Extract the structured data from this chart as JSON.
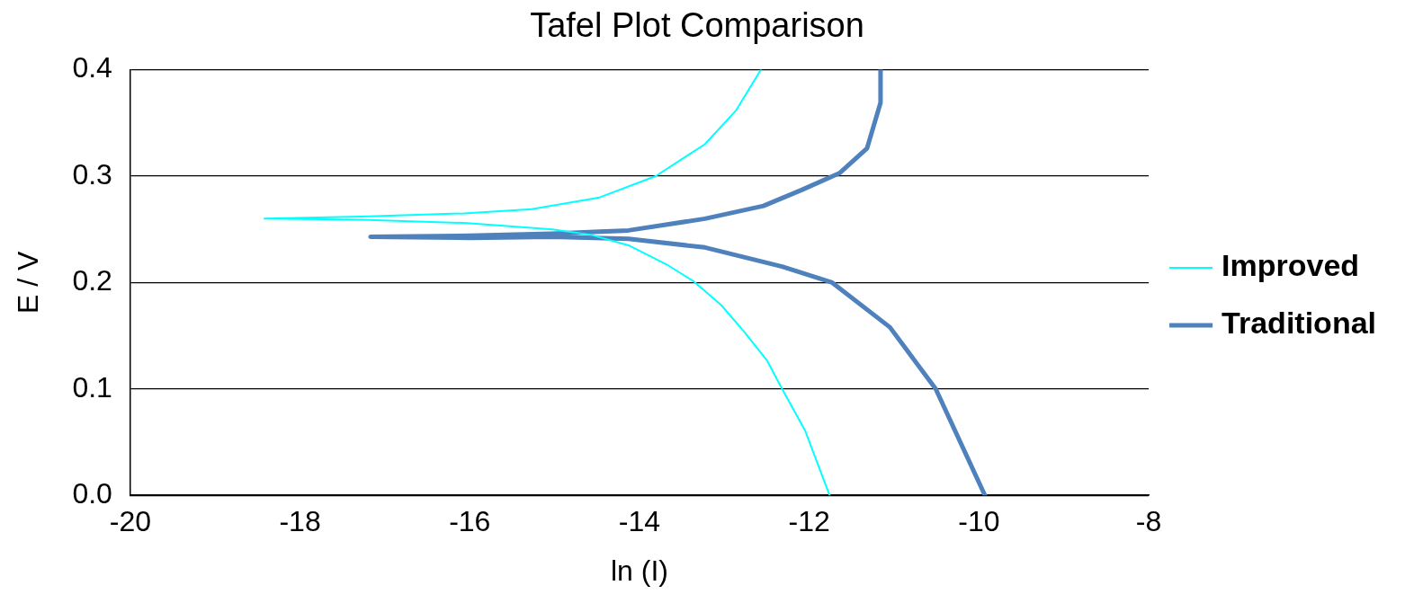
{
  "chart_data": {
    "type": "line",
    "title": "Tafel Plot Comparison",
    "xlabel": "ln (I)",
    "ylabel": "E / V",
    "xlim": [
      -20,
      -8
    ],
    "xticks": [
      -20,
      -18,
      -16,
      -14,
      -12,
      -10,
      -8
    ],
    "ylim": [
      0,
      0.4
    ],
    "yticks": [
      {
        "value": 0,
        "label": "0.0"
      },
      0.1,
      0.2,
      0.3,
      0.4
    ],
    "grid": "y",
    "legend": "right",
    "marker": "none",
    "line_style": "solid",
    "series": [
      {
        "name": "Improved",
        "color": "#00ffff",
        "x": [
          -11.76,
          -12.05,
          -12.32,
          -12.5,
          -12.77,
          -13.04,
          -13.36,
          -13.68,
          -14.13,
          -14.58,
          -15.03,
          -16.07,
          -17.27,
          -18.42,
          -17.27,
          -16.07,
          -15.27,
          -14.47,
          -13.81,
          -13.23,
          -12.86,
          -12.57
        ],
        "values": [
          0,
          0.061,
          0.1,
          0.127,
          0.154,
          0.179,
          0.201,
          0.217,
          0.235,
          0.245,
          0.25,
          0.256,
          0.259,
          0.26,
          0.262,
          0.265,
          0.269,
          0.28,
          0.3,
          0.33,
          0.362,
          0.4
        ]
      },
      {
        "name": "Traditional",
        "color": "#4f81bd",
        "x": [
          -9.93,
          -10.51,
          -11.05,
          -11.73,
          -12.32,
          -13.23,
          -14.13,
          -15.03,
          -16,
          -17.17,
          -16,
          -15.03,
          -14.13,
          -13.23,
          -12.54,
          -12.09,
          -11.64,
          -11.32,
          -11.16,
          -11.16
        ],
        "values": [
          0,
          0.1,
          0.158,
          0.2,
          0.215,
          0.233,
          0.241,
          0.243,
          0.242,
          0.243,
          0.244,
          0.246,
          0.249,
          0.26,
          0.272,
          0.287,
          0.303,
          0.326,
          0.369,
          0.4
        ]
      }
    ]
  }
}
